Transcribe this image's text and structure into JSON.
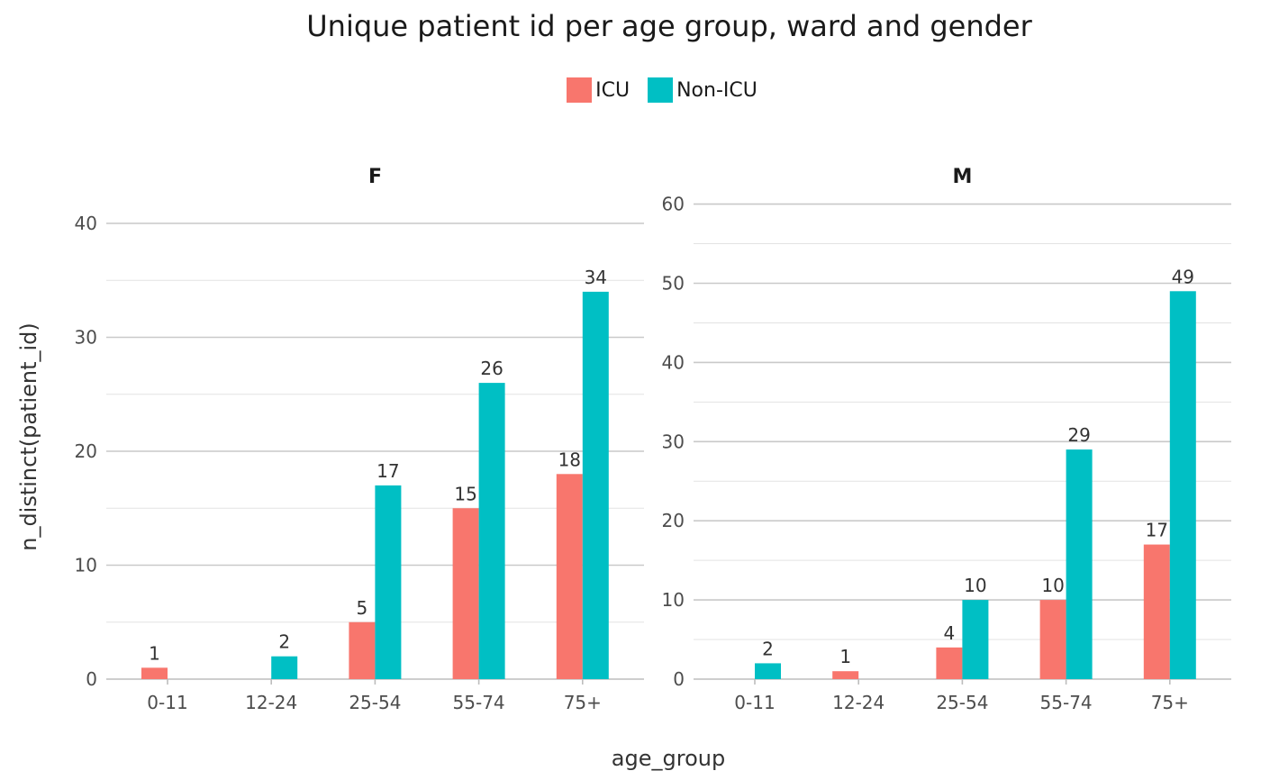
{
  "chart_data": {
    "type": "bar",
    "title": "Unique patient id per age group, ward and gender",
    "xlabel": "age_group",
    "ylabel": "n_distinct(patient_id)",
    "legend": {
      "placement": "top",
      "entries": [
        {
          "name": "ICU",
          "color": "#F8766D"
        },
        {
          "name": "Non-ICU",
          "color": "#00BFC4"
        }
      ]
    },
    "grid": true,
    "panels": [
      {
        "facet": "F",
        "categories": [
          "0-11",
          "12-24",
          "25-54",
          "55-74",
          "75+"
        ],
        "ylim": [
          0,
          42
        ],
        "yticks": [
          0,
          10,
          20,
          30,
          40
        ],
        "series": [
          {
            "name": "ICU",
            "values": [
              1,
              null,
              5,
              15,
              18
            ]
          },
          {
            "name": "Non-ICU",
            "values": [
              null,
              2,
              17,
              26,
              34
            ]
          }
        ]
      },
      {
        "facet": "M",
        "categories": [
          "0-11",
          "12-24",
          "25-54",
          "55-74",
          "75+"
        ],
        "ylim": [
          0,
          61
        ],
        "yticks": [
          0,
          10,
          20,
          30,
          40,
          50,
          60
        ],
        "series": [
          {
            "name": "ICU",
            "values": [
              null,
              1,
              4,
              10,
              17
            ]
          },
          {
            "name": "Non-ICU",
            "values": [
              2,
              null,
              10,
              29,
              49
            ]
          }
        ]
      }
    ]
  }
}
